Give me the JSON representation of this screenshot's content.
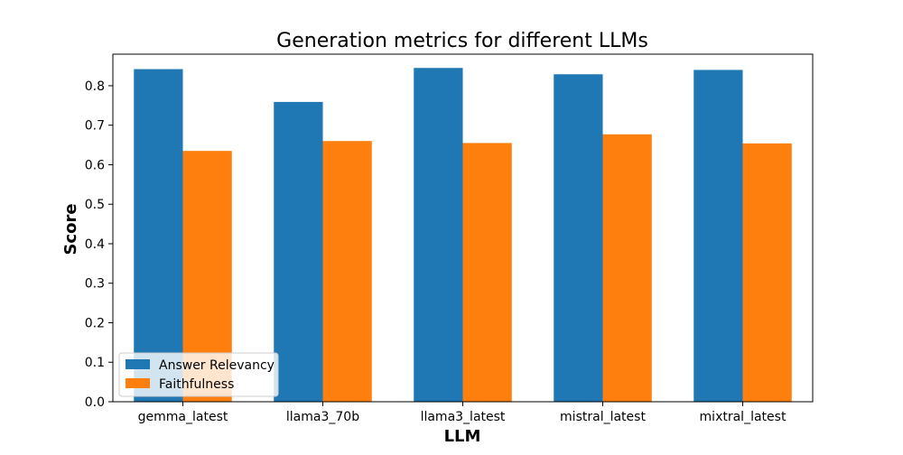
{
  "chart_data": {
    "type": "bar",
    "title": "Generation metrics for different LLMs",
    "xlabel": "LLM",
    "ylabel": "Score",
    "categories": [
      "gemma_latest",
      "llama3_70b",
      "llama3_latest",
      "mistral_latest",
      "mixtral_latest"
    ],
    "series": [
      {
        "name": "Answer Relevancy",
        "color": "#1f77b4",
        "values": [
          0.842,
          0.759,
          0.845,
          0.829,
          0.84
        ]
      },
      {
        "name": "Faithfulness",
        "color": "#ff7f0e",
        "values": [
          0.635,
          0.66,
          0.655,
          0.677,
          0.654
        ]
      }
    ],
    "ylim": [
      0,
      0.8799
    ],
    "yticks": [
      "0.0",
      "0.1",
      "0.2",
      "0.3",
      "0.4",
      "0.5",
      "0.6",
      "0.7",
      "0.8"
    ],
    "legend_position": "lower-left",
    "grid": false
  }
}
